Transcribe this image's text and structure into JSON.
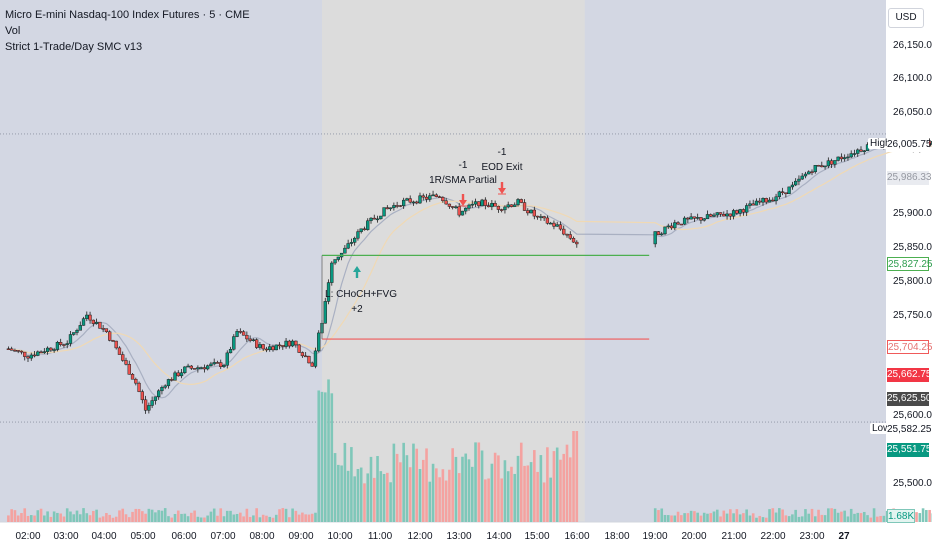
{
  "header": {
    "title": "Micro E-mini Nasdaq-100 Index Futures · 5 · CME",
    "indicator_vol": "Vol",
    "strategy": "Strict 1-Trade/Day SMC v13"
  },
  "currency_button": "USD",
  "colors": {
    "session_bg": "#dcdcdc",
    "off_session_bg": "#d3d7e3",
    "up_candle": "#089981",
    "down_candle": "#ef5350",
    "vol_up": "#7fc7b9",
    "vol_down": "#f4a2a0",
    "sma_fast": "#a9b0c2",
    "sma_slow": "#f0d9b4",
    "stop_line": "#f05a5a",
    "target_line": "#4caf50",
    "entry_arrow": "#26a69a",
    "exit_arrow": "#ef5350"
  },
  "chart_data": {
    "type": "candlestick",
    "interval": "5",
    "ylim": [
      25480,
      26185
    ],
    "y_ticks": [
      "26,150.00",
      "26,100.00",
      "26,050.00",
      "25,900.00",
      "25,850.00",
      "25,800.00",
      "25,750.00",
      "25,600.00",
      "25,500.00"
    ],
    "x_ticks": [
      "02:00",
      "03:00",
      "04:00",
      "05:00",
      "06:00",
      "07:00",
      "08:00",
      "09:00",
      "10:00",
      "11:00",
      "12:00",
      "13:00",
      "14:00",
      "15:00",
      "16:00",
      "18:00",
      "19:00",
      "20:00",
      "21:00",
      "22:00",
      "23:00",
      "27"
    ],
    "x_range": [
      "01:30",
      "11:00 (day 27)"
    ],
    "session_shading": {
      "start": "09:30",
      "end": "16:00"
    },
    "series": [
      {
        "name": "Micro E-mini Nasdaq-100 Index Futures",
        "kind": "ohlc",
        "approx_close_path": [
          [
            "01:30",
            25690
          ],
          [
            "02:00",
            25680
          ],
          [
            "03:00",
            25700
          ],
          [
            "03:30",
            25740
          ],
          [
            "04:00",
            25715
          ],
          [
            "04:45",
            25640
          ],
          [
            "05:00",
            25600
          ],
          [
            "05:30",
            25640
          ],
          [
            "06:00",
            25660
          ],
          [
            "07:00",
            25668
          ],
          [
            "07:20",
            25715
          ],
          [
            "08:00",
            25690
          ],
          [
            "08:45",
            25700
          ],
          [
            "09:15",
            25668
          ],
          [
            "09:30",
            25730
          ],
          [
            "09:45",
            25820
          ],
          [
            "10:00",
            25830
          ],
          [
            "10:30",
            25865
          ],
          [
            "11:00",
            25890
          ],
          [
            "11:30",
            25905
          ],
          [
            "12:00",
            25910
          ],
          [
            "12:30",
            25915
          ],
          [
            "13:00",
            25890
          ],
          [
            "13:30",
            25905
          ],
          [
            "14:00",
            25898
          ],
          [
            "14:30",
            25905
          ],
          [
            "15:00",
            25882
          ],
          [
            "15:30",
            25870
          ],
          [
            "16:00",
            25845
          ],
          [
            "16:30",
            25850
          ],
          [
            "18:00",
            25858
          ],
          [
            "18:30",
            25875
          ],
          [
            "19:00",
            25880
          ],
          [
            "20:00",
            25890
          ],
          [
            "21:00",
            25912
          ],
          [
            "21:30",
            25928
          ],
          [
            "22:00",
            25955
          ],
          [
            "22:30",
            25965
          ],
          [
            "23:00",
            25978
          ],
          [
            "23:30",
            25990
          ],
          [
            "27 00:30",
            25986
          ],
          [
            "27 01:00",
            25995
          ],
          [
            "27 02:00",
            25990
          ]
        ]
      },
      {
        "name": "Vol",
        "kind": "histogram"
      }
    ],
    "price_labels": [
      {
        "label": "High",
        "value": "26,005.75",
        "style": "high"
      },
      {
        "label": "",
        "value": "25,986.33",
        "style": "sma"
      },
      {
        "label": "",
        "value": "25,827.25",
        "style": "target"
      },
      {
        "label": "",
        "value": "25,704.25",
        "style": "stop"
      },
      {
        "label": "",
        "value": "25,662.75",
        "style": "red"
      },
      {
        "label": "",
        "value": "25,625.50",
        "style": "dark"
      },
      {
        "label": "Low",
        "value": "25,582.25",
        "style": "low"
      },
      {
        "label": "",
        "value": "25,551.75",
        "style": "green"
      },
      {
        "label": "",
        "value": "1.68K",
        "style": "vol"
      }
    ],
    "trade": {
      "entry_label": "L: CHoCH+FVG",
      "entry_qty": "+2",
      "partial_label": "1R/SMA Partial",
      "partial_qty": "-1",
      "exit_label": "EOD Exit",
      "exit_qty": "-1",
      "stop_level": 25704.25,
      "target_level": 25827.25
    }
  }
}
